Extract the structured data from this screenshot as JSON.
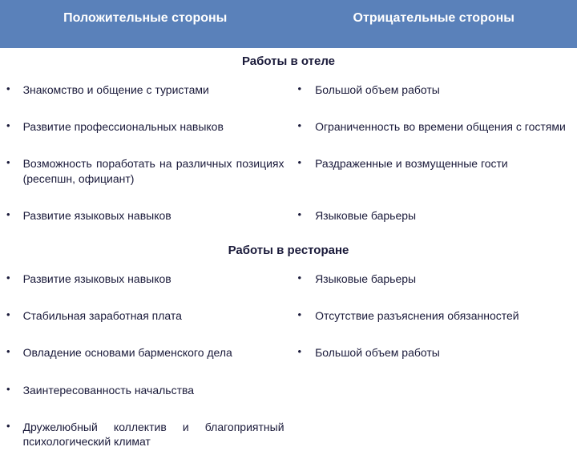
{
  "header": {
    "positive": "Положительные стороны",
    "negative": "Отрицательные стороны"
  },
  "sections": [
    {
      "title": "Работы в отеле",
      "rows": [
        {
          "pos": "Знакомство и общение с туристами",
          "neg": "Большой объем работы"
        },
        {
          "pos": "Развитие профессиональных навыков",
          "neg": "Ограниченность во времени общения с гостями"
        },
        {
          "pos": "Возможность поработать на различных позициях (ресепшн, официант)",
          "neg": "Раздраженные и возмущенные гости"
        },
        {
          "pos": "Развитие языковых навыков",
          "neg": "Языковые барьеры"
        }
      ]
    },
    {
      "title": "Работы в ресторане",
      "rows": [
        {
          "pos": "Развитие языковых навыков",
          "neg": "Языковые барьеры"
        },
        {
          "pos": "Стабильная заработная плата",
          "neg": "Отсутствие разъяснения обязанностей"
        },
        {
          "pos": "Овладение основами барменского дела",
          "neg": "Большой объем работы"
        },
        {
          "pos": "Заинтересованность начальства",
          "neg": ""
        },
        {
          "pos": "Дружелюбный коллектив и благоприятный психологический климат",
          "neg": ""
        }
      ]
    }
  ],
  "style": {
    "header_bg": "#5a81ba",
    "header_text_color": "#ffffff",
    "body_text_color": "#1a1a3a",
    "font_family": "Tahoma, Arial, sans-serif",
    "header_fontsize": 16,
    "section_fontsize": 15,
    "body_fontsize": 14,
    "bullet": "•"
  }
}
